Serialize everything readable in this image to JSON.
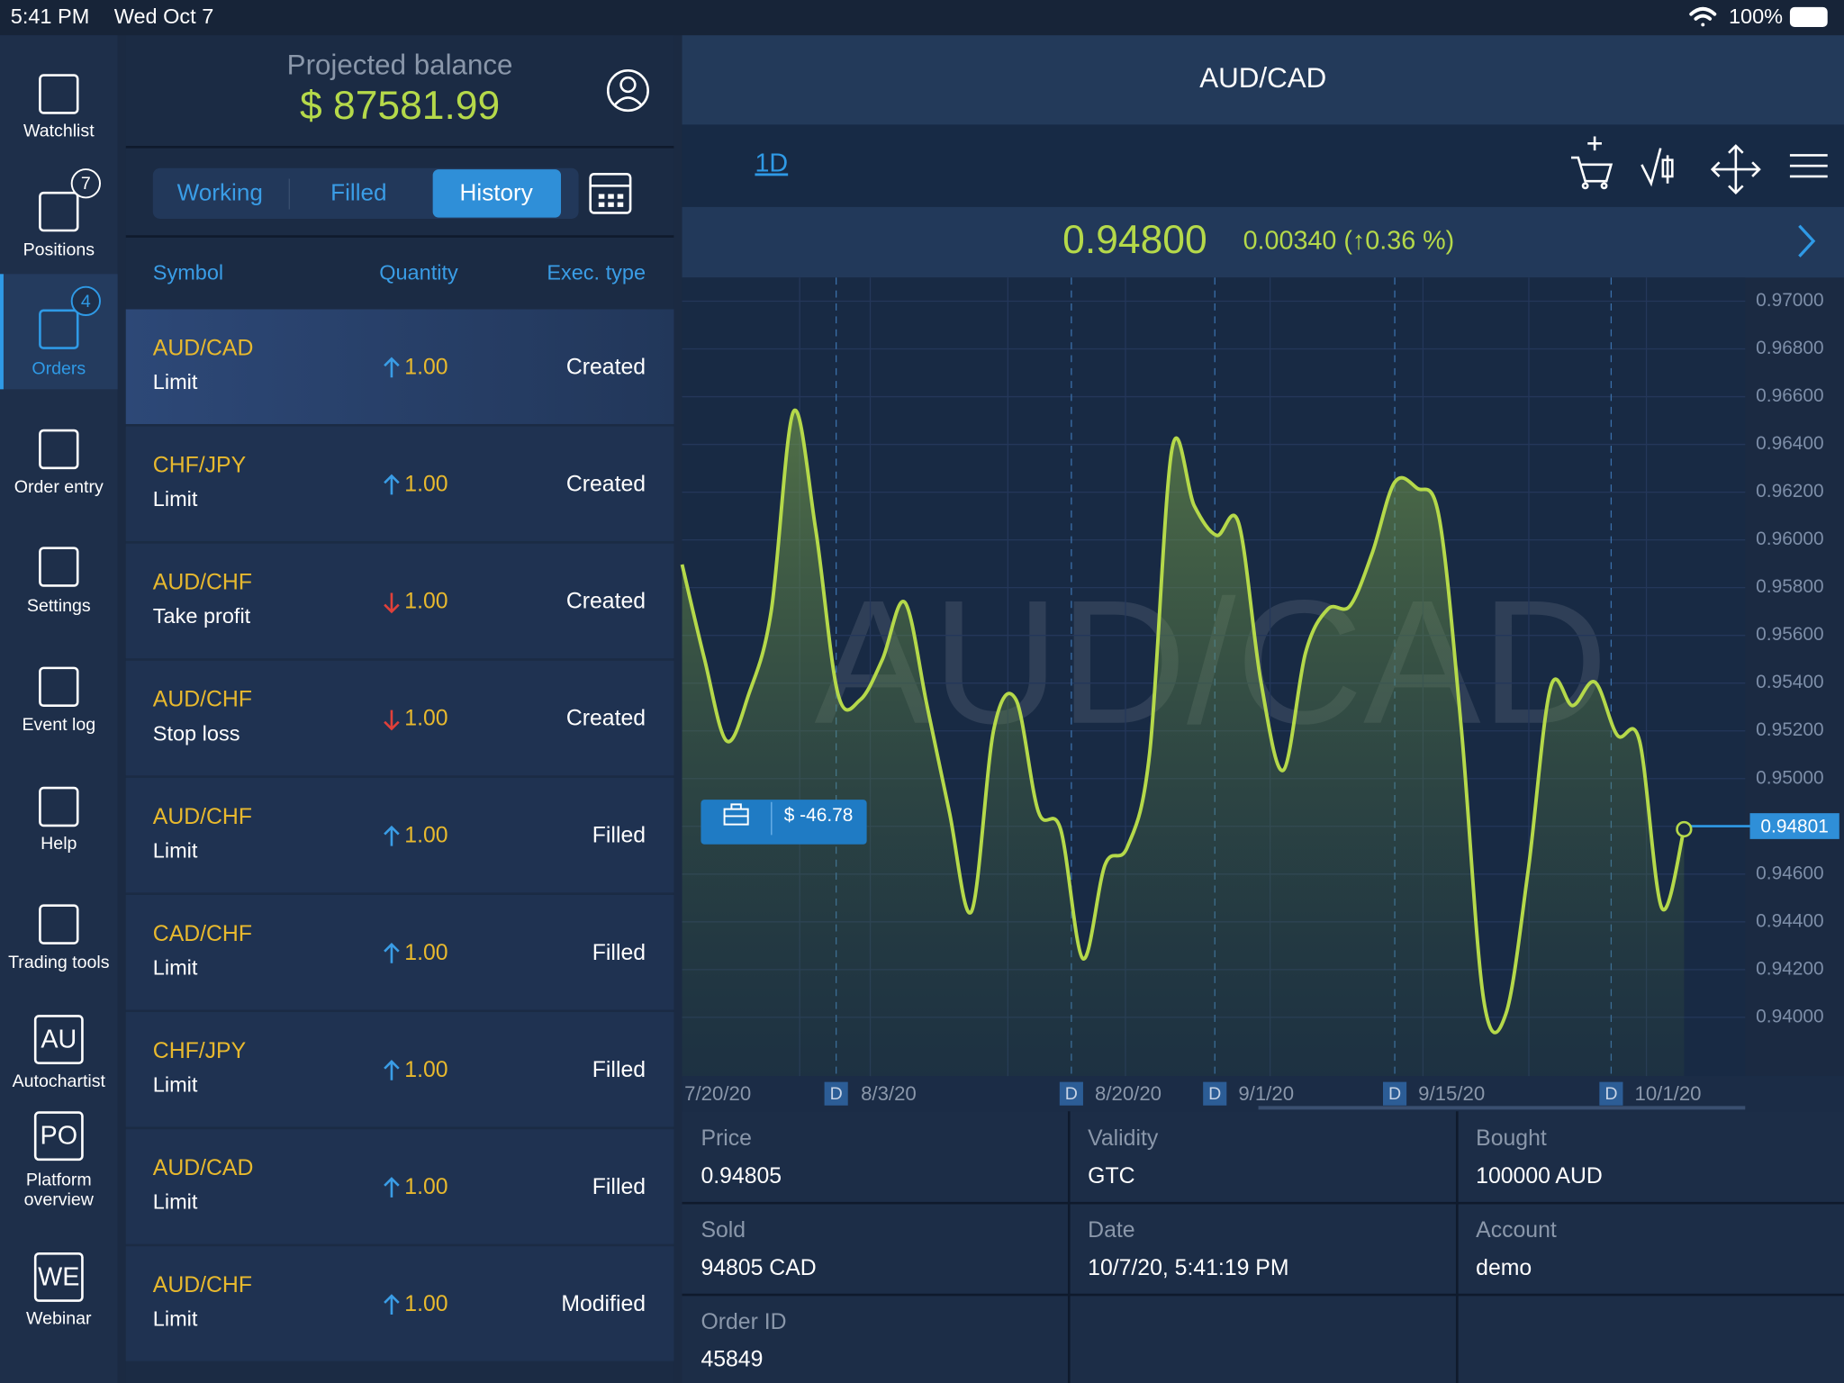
{
  "status": {
    "time": "5:41 PM",
    "date": "Wed Oct 7",
    "battery": "100%"
  },
  "sidebar": [
    {
      "label": [
        "Watchlist"
      ]
    },
    {
      "label": [
        "Positions"
      ],
      "badge": 7
    },
    {
      "label": [
        "Orders"
      ],
      "badge": 4,
      "active": true
    },
    {
      "label": [
        "Order entry"
      ]
    },
    {
      "label": [
        "Settings"
      ]
    },
    {
      "label": [
        "Event log"
      ]
    },
    {
      "label": [
        "Help"
      ]
    },
    {
      "label": [
        "Trading tools"
      ]
    },
    {
      "label": [
        "Autochartist"
      ],
      "icon": "AU"
    },
    {
      "label": [
        "Platform",
        "overview"
      ],
      "icon": "PO"
    },
    {
      "label": [
        "Webinar"
      ],
      "icon": "WE"
    }
  ],
  "balance": {
    "label": "Projected balance",
    "value": "$ 87581.99"
  },
  "tabs": [
    "Working",
    "Filled",
    "History"
  ],
  "active_tab": 2,
  "columns": [
    "Symbol",
    "Quantity",
    "Exec. type"
  ],
  "orders": [
    {
      "symbol": "AUD/CAD",
      "type": "Limit",
      "direction": "up",
      "quantity": "1.00",
      "exec": "Created"
    },
    {
      "symbol": "CHF/JPY",
      "type": "Limit",
      "direction": "up",
      "quantity": "1.00",
      "exec": "Created"
    },
    {
      "symbol": "AUD/CHF",
      "type": "Take profit",
      "direction": "down",
      "quantity": "1.00",
      "exec": "Created"
    },
    {
      "symbol": "AUD/CHF",
      "type": "Stop loss",
      "direction": "down",
      "quantity": "1.00",
      "exec": "Created"
    },
    {
      "symbol": "AUD/CHF",
      "type": "Limit",
      "direction": "up",
      "quantity": "1.00",
      "exec": "Filled"
    },
    {
      "symbol": "CAD/CHF",
      "type": "Limit",
      "direction": "up",
      "quantity": "1.00",
      "exec": "Filled"
    },
    {
      "symbol": "CHF/JPY",
      "type": "Limit",
      "direction": "up",
      "quantity": "1.00",
      "exec": "Filled"
    },
    {
      "symbol": "AUD/CAD",
      "type": "Limit",
      "direction": "up",
      "quantity": "1.00",
      "exec": "Filled"
    },
    {
      "symbol": "AUD/CHF",
      "type": "Limit",
      "direction": "up",
      "quantity": "1.00",
      "exec": "Modified"
    }
  ],
  "chart": {
    "type": "area",
    "symbol": "AUD/CAD",
    "timeframe": "1D",
    "price": "0.94800",
    "change": "0.00340 (↑0.36 %)",
    "position_pl": "$ -46.78",
    "current": {
      "value": 0.94801,
      "label": "0.94801"
    },
    "color": "#b5d94a",
    "values": [
      0.95897,
      0.95503,
      0.95158,
      0.95355,
      0.957,
      0.96537,
      0.96044,
      0.95355,
      0.9533,
      0.955,
      0.95739,
      0.95306,
      0.94862,
      0.94444,
      0.95207,
      0.9533,
      0.94862,
      0.94788,
      0.94246,
      0.9464,
      0.94714,
      0.95108,
      0.96379,
      0.96143,
      0.96019,
      0.96069,
      0.95404,
      0.95035,
      0.95527,
      0.9571,
      0.95724,
      0.95946,
      0.96241,
      0.96217,
      0.96094,
      0.95207,
      0.94074,
      0.94015,
      0.94616,
      0.9538,
      0.95306,
      0.95404,
      0.95182,
      0.95158,
      0.94458,
      0.94788
    ],
    "ylim": [
      0.93754,
      0.97099
    ],
    "yticks": [
      {
        "value": 0.94,
        "label": "0.94000"
      },
      {
        "value": 0.942,
        "label": "0.94200"
      },
      {
        "value": 0.944,
        "label": "0.94400"
      },
      {
        "value": 0.946,
        "label": "0.94600"
      },
      {
        "value": 0.948,
        "label": "0.94800"
      },
      {
        "value": 0.95,
        "label": "0.95000"
      },
      {
        "value": 0.952,
        "label": "0.95200"
      },
      {
        "value": 0.954,
        "label": "0.95400"
      },
      {
        "value": 0.956,
        "label": "0.95600"
      },
      {
        "value": 0.958,
        "label": "0.95800"
      },
      {
        "value": 0.96,
        "label": "0.96000"
      },
      {
        "value": 0.962,
        "label": "0.96200"
      },
      {
        "value": 0.964,
        "label": "0.96400"
      },
      {
        "value": 0.966,
        "label": "0.96600"
      },
      {
        "value": 0.968,
        "label": "0.96800"
      },
      {
        "value": 0.97,
        "label": "0.97000"
      }
    ],
    "x_labels": [
      "7/20/20",
      "8/3/20",
      "8/20/20",
      "9/1/20",
      "9/15/20",
      "10/1/20"
    ],
    "marker_label": "D"
  },
  "details": [
    {
      "label": "Price",
      "value": "0.94805"
    },
    {
      "label": "Validity",
      "value": "GTC"
    },
    {
      "label": "Bought",
      "value": "100000 AUD"
    },
    {
      "label": "Sold",
      "value": "94805 CAD"
    },
    {
      "label": "Date",
      "value": "10/7/20, 5:41:19 PM"
    },
    {
      "label": "Account",
      "value": "demo"
    },
    {
      "label": "Order ID",
      "value": "45849"
    }
  ]
}
